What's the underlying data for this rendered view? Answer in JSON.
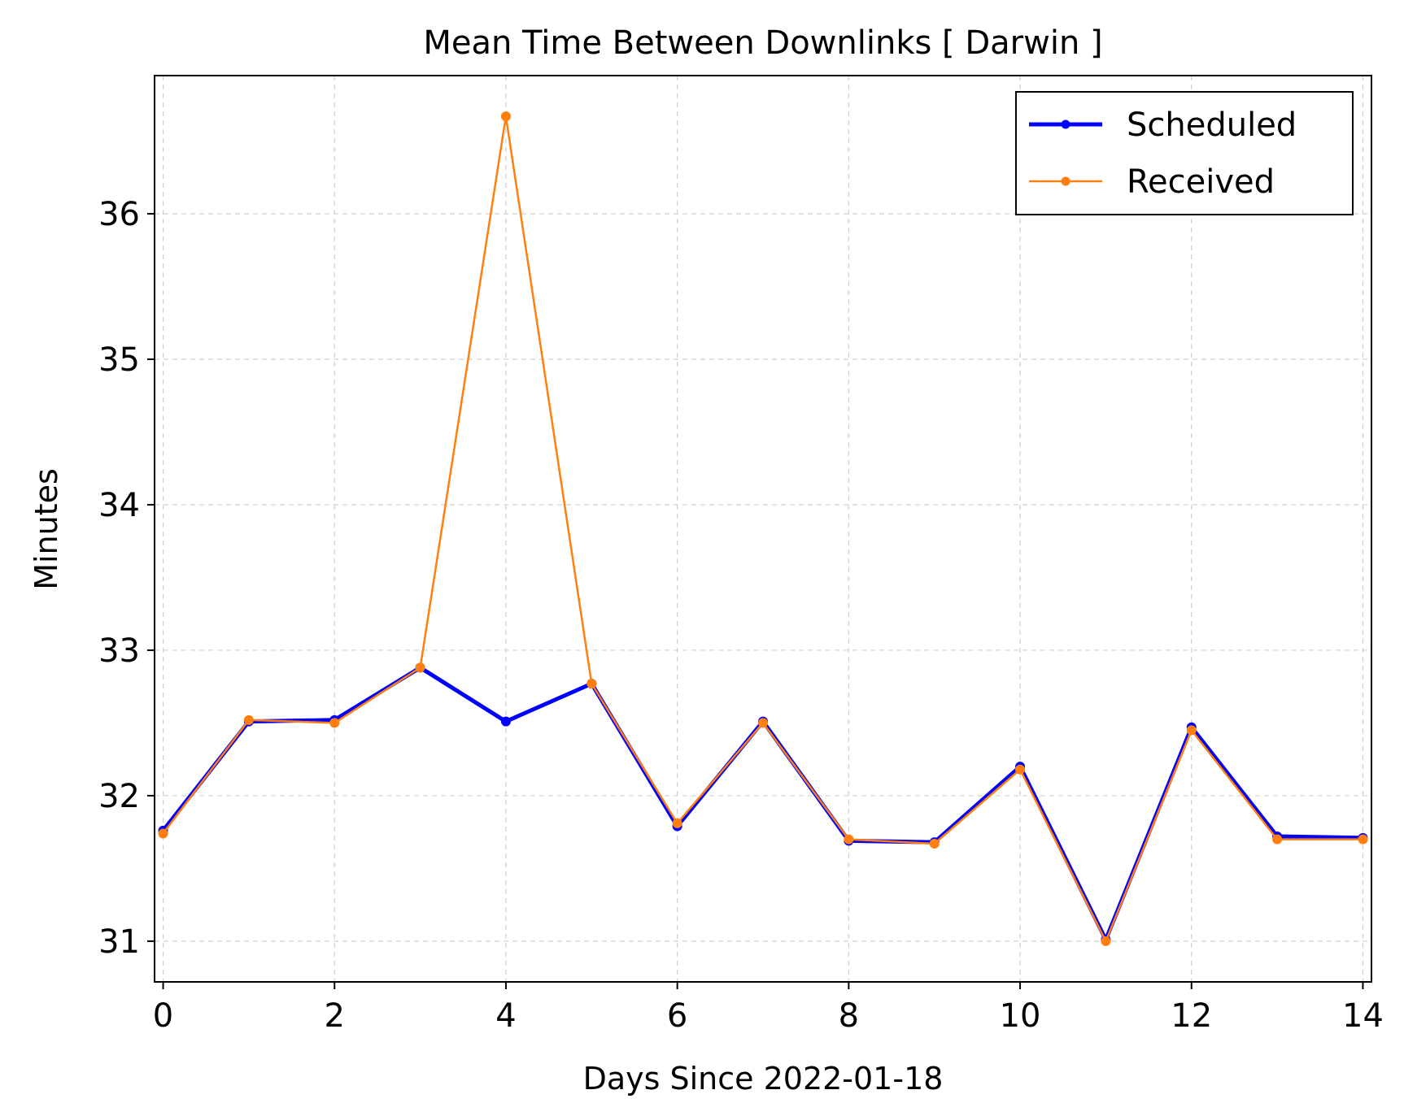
{
  "chart_data": {
    "type": "line",
    "title": "Mean Time Between Downlinks [ Darwin ]",
    "xlabel": "Days Since 2022-01-18",
    "ylabel": "Minutes",
    "xlim": [
      -0.1,
      14.1
    ],
    "ylim": [
      30.72,
      36.95
    ],
    "xticks": [
      0,
      2,
      4,
      6,
      8,
      10,
      12,
      14
    ],
    "yticks": [
      31,
      32,
      33,
      34,
      35,
      36
    ],
    "grid": true,
    "legend": "top-right",
    "x": [
      0,
      1,
      2,
      3,
      4,
      5,
      6,
      7,
      8,
      9,
      10,
      11,
      12,
      13,
      14
    ],
    "series": [
      {
        "name": "Scheduled",
        "color": "#0000ff",
        "values": [
          31.76,
          32.51,
          32.52,
          32.88,
          32.51,
          32.77,
          31.79,
          32.51,
          31.69,
          31.68,
          32.2,
          31.01,
          32.47,
          31.72,
          31.71
        ]
      },
      {
        "name": "Received",
        "color": "#ff7f0e",
        "values": [
          31.74,
          32.52,
          32.5,
          32.88,
          36.67,
          32.77,
          31.81,
          32.5,
          31.7,
          31.67,
          32.18,
          31.0,
          32.45,
          31.7,
          31.7
        ]
      }
    ]
  }
}
